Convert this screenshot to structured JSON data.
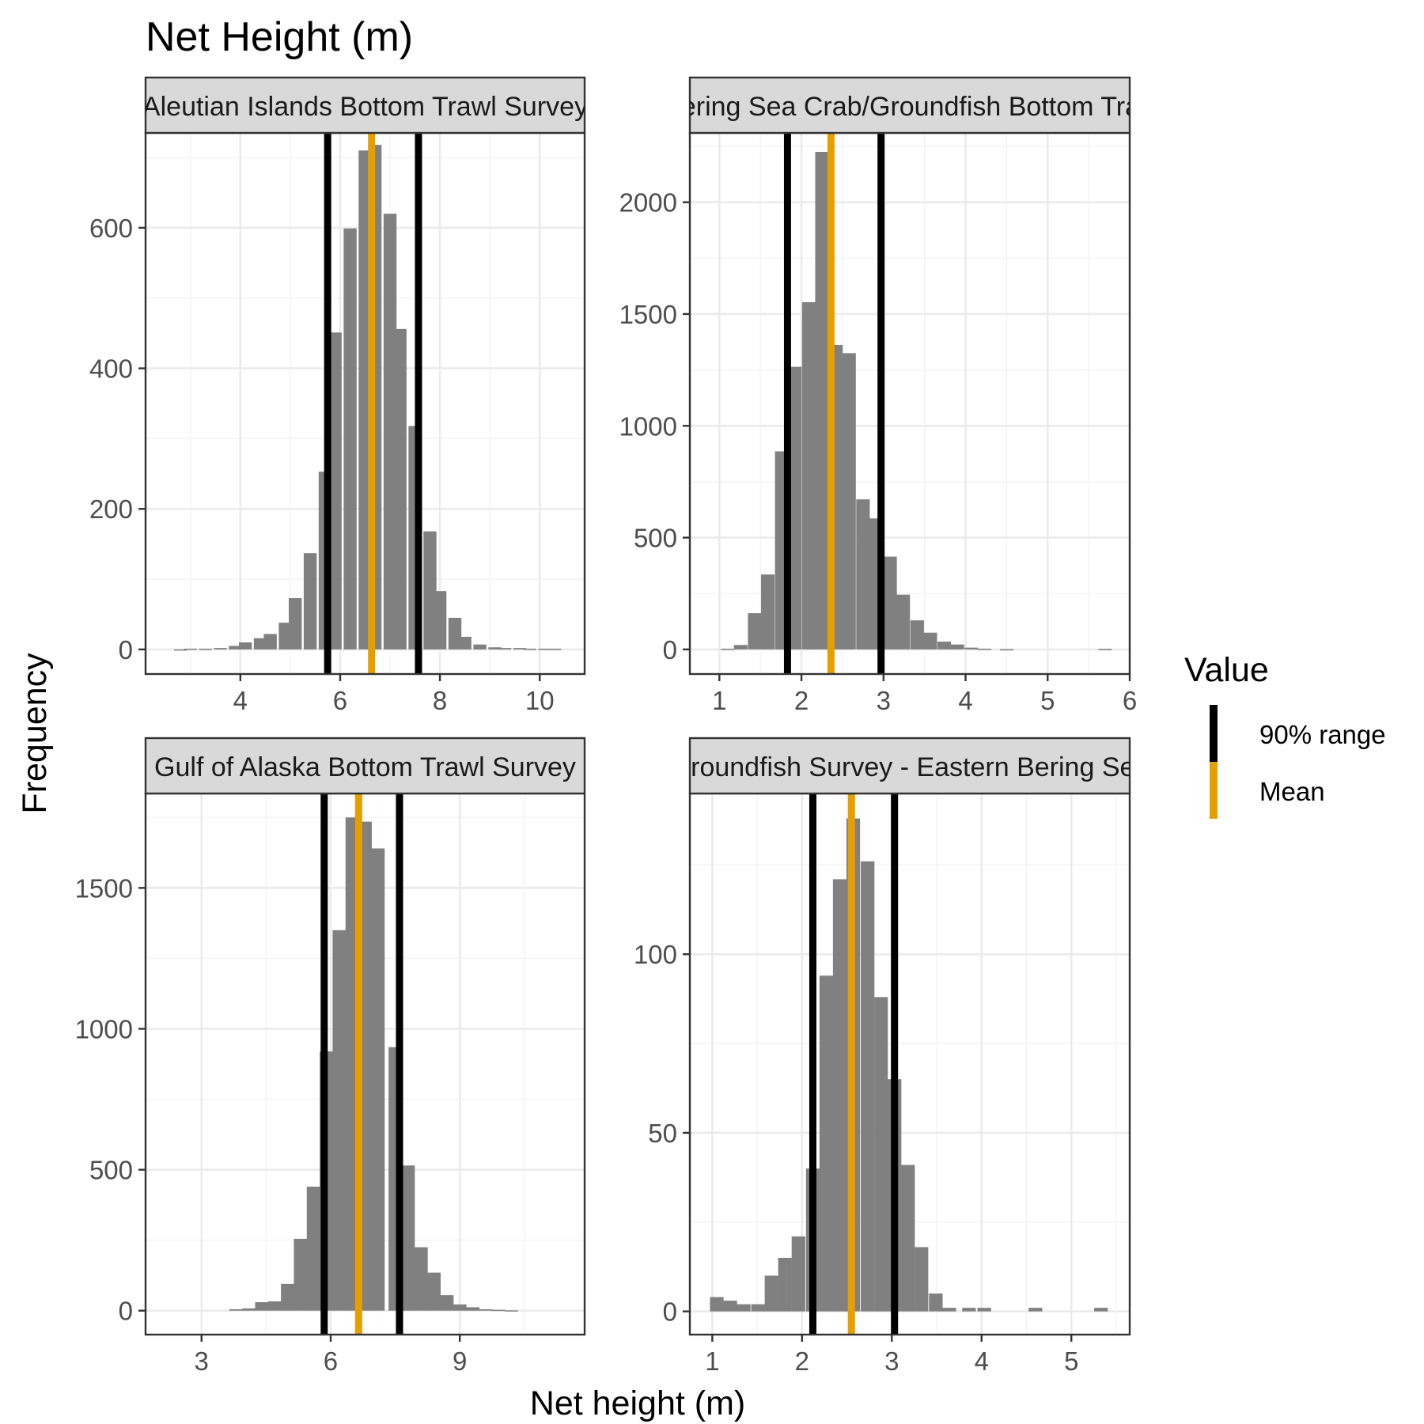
{
  "chart_data": {
    "type": "bar",
    "title": "Net Height (m)",
    "xlabel": "Net height (m)",
    "ylabel": "Frequency",
    "legend": {
      "title": "Value",
      "position": "right",
      "items": [
        {
          "label": "90% range",
          "color": "#000000"
        },
        {
          "label": "Mean",
          "color": "#E69F00"
        }
      ]
    },
    "bar_color": "#808080",
    "panels": [
      {
        "strip": "Aleutian Islands Bottom Trawl Survey",
        "xlim": [
          2.1,
          10.9
        ],
        "ylim": [
          -35,
          735
        ],
        "x_ticks": [
          4,
          6,
          8,
          10
        ],
        "y_ticks": [
          0,
          200,
          400,
          600
        ],
        "bin_width": 0.26,
        "bins": [
          [
            2.8,
            0
          ],
          [
            3.0,
            1
          ],
          [
            3.3,
            1
          ],
          [
            3.6,
            2
          ],
          [
            3.9,
            5
          ],
          [
            4.1,
            10
          ],
          [
            4.4,
            16
          ],
          [
            4.6,
            22
          ],
          [
            4.9,
            38
          ],
          [
            5.1,
            73
          ],
          [
            5.4,
            137
          ],
          [
            5.7,
            253
          ],
          [
            5.9,
            451
          ],
          [
            6.2,
            599
          ],
          [
            6.5,
            710
          ],
          [
            6.7,
            718
          ],
          [
            7.0,
            620
          ],
          [
            7.2,
            456
          ],
          [
            7.5,
            318
          ],
          [
            7.8,
            168
          ],
          [
            8.0,
            83
          ],
          [
            8.3,
            45
          ],
          [
            8.5,
            18
          ],
          [
            8.8,
            7
          ],
          [
            9.1,
            3
          ],
          [
            9.3,
            2
          ],
          [
            9.6,
            2
          ],
          [
            9.8,
            1
          ],
          [
            10.1,
            1
          ],
          [
            10.3,
            1
          ]
        ],
        "range_90": [
          5.75,
          7.57
        ],
        "mean": 6.63
      },
      {
        "strip": "Eastern Bering Sea Crab/Groundfish Bottom Trawl Survey",
        "xlim": [
          0.64,
          6.0
        ],
        "ylim": [
          -110,
          2310
        ],
        "x_ticks": [
          1,
          2,
          3,
          4,
          5,
          6
        ],
        "y_ticks": [
          0,
          500,
          1000,
          1500,
          2000
        ],
        "bin_width": 0.165,
        "bins": [
          [
            1.1,
            3
          ],
          [
            1.26,
            20
          ],
          [
            1.43,
            162
          ],
          [
            1.59,
            335
          ],
          [
            1.76,
            886
          ],
          [
            1.92,
            1264
          ],
          [
            2.09,
            1553
          ],
          [
            2.25,
            2225
          ],
          [
            2.42,
            1362
          ],
          [
            2.58,
            1325
          ],
          [
            2.75,
            671
          ],
          [
            2.91,
            586
          ],
          [
            3.08,
            415
          ],
          [
            3.24,
            245
          ],
          [
            3.41,
            130
          ],
          [
            3.57,
            75
          ],
          [
            3.74,
            35
          ],
          [
            3.9,
            22
          ],
          [
            4.07,
            8
          ],
          [
            4.23,
            3
          ],
          [
            4.5,
            1
          ],
          [
            5.7,
            2
          ]
        ],
        "range_90": [
          1.83,
          2.97
        ],
        "mean": 2.36
      },
      {
        "strip": "Gulf of Alaska Bottom Trawl Survey",
        "xlim": [
          1.7,
          11.9
        ],
        "ylim": [
          -85,
          1835
        ],
        "x_ticks": [
          3,
          6,
          9
        ],
        "y_ticks": [
          0,
          500,
          1000,
          1500
        ],
        "bin_width": 0.31,
        "bins": [
          [
            3.8,
            5
          ],
          [
            4.1,
            8
          ],
          [
            4.4,
            30
          ],
          [
            4.7,
            33
          ],
          [
            5.0,
            95
          ],
          [
            5.3,
            255
          ],
          [
            5.6,
            440
          ],
          [
            5.9,
            920
          ],
          [
            6.2,
            1350
          ],
          [
            6.5,
            1750
          ],
          [
            6.8,
            1735
          ],
          [
            7.1,
            1640
          ],
          [
            7.5,
            935
          ],
          [
            7.8,
            515
          ],
          [
            8.1,
            225
          ],
          [
            8.4,
            135
          ],
          [
            8.7,
            55
          ],
          [
            9.0,
            22
          ],
          [
            9.3,
            12
          ],
          [
            9.6,
            5
          ],
          [
            9.9,
            3
          ],
          [
            10.2,
            1
          ]
        ],
        "range_90": [
          5.85,
          7.6
        ],
        "mean": 6.65
      },
      {
        "strip": "Groundfish Survey - Eastern Bering Sea",
        "xlim": [
          0.75,
          5.65
        ],
        "ylim": [
          -6.5,
          145
        ],
        "x_ticks": [
          1,
          2,
          3,
          4,
          5
        ],
        "y_ticks": [
          0,
          50,
          100
        ],
        "bin_width": 0.152,
        "bins": [
          [
            1.05,
            4
          ],
          [
            1.2,
            3
          ],
          [
            1.35,
            2
          ],
          [
            1.51,
            2
          ],
          [
            1.66,
            10
          ],
          [
            1.81,
            15
          ],
          [
            1.96,
            21
          ],
          [
            2.12,
            40
          ],
          [
            2.27,
            94
          ],
          [
            2.42,
            121
          ],
          [
            2.57,
            138
          ],
          [
            2.73,
            126
          ],
          [
            2.88,
            88
          ],
          [
            3.03,
            65
          ],
          [
            3.18,
            41
          ],
          [
            3.33,
            18
          ],
          [
            3.49,
            5
          ],
          [
            3.64,
            1
          ],
          [
            3.86,
            1
          ],
          [
            4.03,
            1
          ],
          [
            4.6,
            1
          ],
          [
            5.33,
            1
          ]
        ],
        "range_90": [
          2.12,
          3.03
        ],
        "mean": 2.55
      }
    ]
  }
}
